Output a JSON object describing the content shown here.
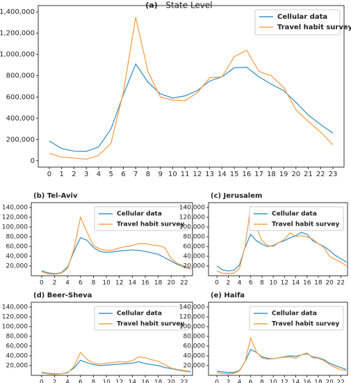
{
  "chart_data": [
    {
      "type": "line",
      "title": "(a)",
      "subtitle": "State Level",
      "x": [
        0,
        1,
        2,
        3,
        4,
        5,
        6,
        7,
        8,
        9,
        10,
        11,
        12,
        13,
        14,
        15,
        16,
        17,
        18,
        19,
        20,
        21,
        22,
        23
      ],
      "xlim": [
        -0.9,
        23.9
      ],
      "xticks": [
        0,
        1,
        2,
        3,
        4,
        5,
        6,
        7,
        8,
        9,
        10,
        11,
        12,
        13,
        14,
        15,
        16,
        17,
        18,
        19,
        20,
        21,
        22,
        23
      ],
      "ylim": [
        -60000,
        1460000
      ],
      "yticks": [
        {
          "value": 0,
          "label": "0"
        },
        {
          "value": 200000,
          "label": "200,000"
        },
        {
          "value": 400000,
          "label": "400,000"
        },
        {
          "value": 600000,
          "label": "600,000"
        },
        {
          "value": 800000,
          "label": "800,000"
        },
        {
          "value": 1000000,
          "label": "1,000,000"
        },
        {
          "value": 1200000,
          "label": "1,200,000"
        },
        {
          "value": 1400000,
          "label": "1,400,000"
        }
      ],
      "legend": "upper right",
      "series": [
        {
          "name": "Cellular data",
          "color": "#3a93c3",
          "values": [
            185000,
            115000,
            90000,
            88000,
            130000,
            300000,
            620000,
            910000,
            740000,
            630000,
            590000,
            610000,
            660000,
            750000,
            790000,
            875000,
            880000,
            790000,
            720000,
            660000,
            550000,
            430000,
            340000,
            260000
          ]
        },
        {
          "name": "Travel habit survey",
          "color": "#f5a04a",
          "values": [
            70000,
            35000,
            25000,
            15000,
            50000,
            165000,
            640000,
            1350000,
            840000,
            600000,
            570000,
            565000,
            640000,
            780000,
            790000,
            980000,
            1040000,
            840000,
            800000,
            690000,
            480000,
            370000,
            270000,
            150000
          ]
        }
      ]
    },
    {
      "type": "line",
      "title": "(b) Tel-Aviv",
      "x": [
        0,
        1,
        2,
        3,
        4,
        5,
        6,
        7,
        8,
        9,
        10,
        11,
        12,
        13,
        14,
        15,
        16,
        17,
        18,
        19,
        20,
        21,
        22,
        23
      ],
      "xlim": [
        -1.6,
        23.3
      ],
      "xticks": [
        0,
        2,
        4,
        6,
        8,
        10,
        12,
        14,
        16,
        18,
        20,
        22
      ],
      "ylim": [
        0,
        150000
      ],
      "yticks": [
        {
          "value": 20000,
          "label": "20,000"
        },
        {
          "value": 40000,
          "label": "40,000"
        },
        {
          "value": 60000,
          "label": "60,000"
        },
        {
          "value": 80000,
          "label": "80,000"
        },
        {
          "value": 100000,
          "label": "100,000"
        },
        {
          "value": 120000,
          "label": "120,000"
        },
        {
          "value": 140000,
          "label": "140,000"
        }
      ],
      "legend": "upper right",
      "series": [
        {
          "name": "Cellular data",
          "color": "#3a93c3",
          "values": [
            10000,
            6000,
            4000,
            6000,
            18000,
            50000,
            78000,
            73000,
            58000,
            50000,
            48000,
            49000,
            51000,
            52000,
            53000,
            52000,
            50000,
            47000,
            44000,
            37000,
            30000,
            23000,
            18000,
            14000
          ]
        },
        {
          "name": "Travel habit survey",
          "color": "#f5a04a",
          "values": [
            8000,
            4000,
            3000,
            5000,
            15000,
            55000,
            120000,
            90000,
            62000,
            55000,
            52000,
            53000,
            57000,
            60000,
            62000,
            66000,
            66000,
            63000,
            62000,
            58000,
            35000,
            25000,
            20000,
            14000
          ]
        }
      ]
    },
    {
      "type": "line",
      "title": "(c) Jerusalem",
      "x": [
        0,
        1,
        2,
        3,
        4,
        5,
        6,
        7,
        8,
        9,
        10,
        11,
        12,
        13,
        14,
        15,
        16,
        17,
        18,
        19,
        20,
        21,
        22,
        23
      ],
      "xlim": [
        -1.5,
        23.2
      ],
      "xticks": [
        0,
        2,
        4,
        6,
        8,
        10,
        12,
        14,
        16,
        18,
        20,
        22
      ],
      "ylim": [
        0,
        150000
      ],
      "yticks": [
        {
          "value": 20000,
          "label": "20,000"
        },
        {
          "value": 40000,
          "label": "40,000"
        },
        {
          "value": 60000,
          "label": "60,000"
        },
        {
          "value": 80000,
          "label": "80,000"
        },
        {
          "value": 100000,
          "label": "100,000"
        },
        {
          "value": 120000,
          "label": "120,000"
        },
        {
          "value": 140000,
          "label": "140,000"
        }
      ],
      "legend": "upper right",
      "series": [
        {
          "name": "Cellular data",
          "color": "#3a93c3",
          "values": [
            20000,
            12000,
            10000,
            11000,
            22000,
            58000,
            85000,
            72000,
            65000,
            60000,
            62000,
            68000,
            72000,
            78000,
            82000,
            89000,
            85000,
            72000,
            66000,
            60000,
            52000,
            42000,
            35000,
            28000
          ]
        },
        {
          "name": "Travel habit survey",
          "color": "#f5a04a",
          "values": [
            10000,
            5000,
            4000,
            5000,
            15000,
            60000,
            143000,
            100000,
            72000,
            62000,
            60000,
            68000,
            75000,
            88000,
            80000,
            82000,
            80000,
            75000,
            66000,
            58000,
            40000,
            33000,
            28000,
            20000
          ]
        }
      ]
    },
    {
      "type": "line",
      "title": "(d) Beer-Sheva",
      "x": [
        0,
        1,
        2,
        3,
        4,
        5,
        6,
        7,
        8,
        9,
        10,
        11,
        12,
        13,
        14,
        15,
        16,
        17,
        18,
        19,
        20,
        21,
        22,
        23
      ],
      "xlim": [
        -1.6,
        23.3
      ],
      "xticks": [
        0,
        2,
        4,
        6,
        8,
        10,
        12,
        14,
        16,
        18,
        20,
        22
      ],
      "ylim": [
        0,
        150000
      ],
      "yticks": [
        {
          "value": 20000,
          "label": "20,000"
        },
        {
          "value": 40000,
          "label": "40,000"
        },
        {
          "value": 60000,
          "label": "60,000"
        },
        {
          "value": 80000,
          "label": "80,000"
        },
        {
          "value": 100000,
          "label": "100,000"
        },
        {
          "value": 120000,
          "label": "120,000"
        },
        {
          "value": 140000,
          "label": "140,000"
        }
      ],
      "legend": "upper right",
      "series": [
        {
          "name": "Cellular data",
          "color": "#3a93c3",
          "values": [
            6000,
            4000,
            3000,
            3000,
            6000,
            15000,
            31000,
            26000,
            22000,
            20000,
            21000,
            22000,
            23000,
            24000,
            25000,
            28000,
            24000,
            22000,
            20000,
            16000,
            14000,
            11000,
            9000,
            7000
          ]
        },
        {
          "name": "Travel habit survey",
          "color": "#f5a04a",
          "values": [
            5000,
            3000,
            2000,
            3000,
            5000,
            18000,
            47000,
            33000,
            25000,
            23000,
            25000,
            26000,
            28000,
            27000,
            30000,
            38000,
            36000,
            32000,
            29000,
            22000,
            15000,
            12000,
            10000,
            8000
          ]
        }
      ]
    },
    {
      "type": "line",
      "title": "(e) Haifa",
      "x": [
        0,
        1,
        2,
        3,
        4,
        5,
        6,
        7,
        8,
        9,
        10,
        11,
        12,
        13,
        14,
        15,
        16,
        17,
        18,
        19,
        20,
        21,
        22,
        23
      ],
      "xlim": [
        -1.5,
        23.2
      ],
      "xticks": [
        0,
        2,
        4,
        6,
        8,
        10,
        12,
        14,
        16,
        18,
        20,
        22
      ],
      "ylim": [
        0,
        150000
      ],
      "yticks": [
        {
          "value": 20000,
          "label": "20,000"
        },
        {
          "value": 40000,
          "label": "40,000"
        },
        {
          "value": 60000,
          "label": "60,000"
        },
        {
          "value": 80000,
          "label": "80,000"
        },
        {
          "value": 100000,
          "label": "100,000"
        },
        {
          "value": 120000,
          "label": "120,000"
        },
        {
          "value": 140000,
          "label": "140,000"
        }
      ],
      "legend": "upper right",
      "series": [
        {
          "name": "Cellular data",
          "color": "#3a93c3",
          "values": [
            9000,
            7000,
            6000,
            6000,
            10000,
            28000,
            53000,
            47000,
            38000,
            35000,
            34000,
            36000,
            38000,
            40000,
            39000,
            42000,
            44000,
            38000,
            36000,
            32000,
            25000,
            20000,
            16000,
            12000
          ]
        },
        {
          "name": "Travel habit survey",
          "color": "#f5a04a",
          "values": [
            6000,
            4000,
            3000,
            4000,
            9000,
            28000,
            77000,
            48000,
            36000,
            33000,
            34000,
            36000,
            37000,
            38000,
            35000,
            42000,
            46000,
            36000,
            35000,
            30000,
            22000,
            16000,
            12000,
            9000
          ]
        }
      ]
    }
  ]
}
